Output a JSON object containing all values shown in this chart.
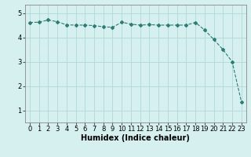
{
  "x": [
    0,
    1,
    2,
    3,
    4,
    5,
    6,
    7,
    8,
    9,
    10,
    11,
    12,
    13,
    14,
    15,
    16,
    17,
    18,
    19,
    20,
    21,
    22,
    23
  ],
  "y": [
    4.62,
    4.63,
    4.72,
    4.65,
    4.52,
    4.51,
    4.51,
    4.49,
    4.44,
    4.42,
    4.63,
    4.55,
    4.51,
    4.53,
    4.51,
    4.51,
    4.51,
    4.51,
    4.62,
    4.31,
    3.92,
    3.5,
    3.0,
    1.35
  ],
  "line_color": "#2e7d72",
  "marker": "D",
  "marker_size": 2.0,
  "bg_color": "#d6f0f0",
  "grid_color": "#b0d8d8",
  "xlabel": "Humidex (Indice chaleur)",
  "xlabel_fontsize": 7,
  "tick_fontsize": 6,
  "ylim": [
    0.5,
    5.35
  ],
  "xlim": [
    -0.5,
    23.5
  ],
  "yticks": [
    1,
    2,
    3,
    4,
    5
  ],
  "xticks": [
    0,
    1,
    2,
    3,
    4,
    5,
    6,
    7,
    8,
    9,
    10,
    11,
    12,
    13,
    14,
    15,
    16,
    17,
    18,
    19,
    20,
    21,
    22,
    23
  ]
}
